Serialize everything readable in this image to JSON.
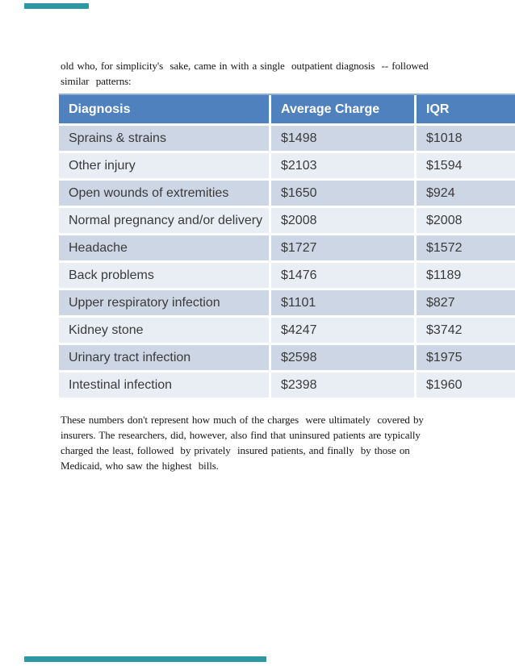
{
  "accent": {
    "color": "#2c98a4"
  },
  "intro_paragraph": {
    "lines": [
      "old who, for simplicity's  sake, came in with a single  outpatient diagnosis  -- followed",
      "similar  patterns:"
    ]
  },
  "table": {
    "header_bg": "#4e81bd",
    "row_colors": [
      "#cdd6e4",
      "#e9eef5"
    ],
    "headers": [
      "Diagnosis",
      "Average Charge",
      "IQR"
    ],
    "rows": [
      {
        "diagnosis": "Sprains & strains",
        "average_charge": "$1498",
        "iqr": "$1018"
      },
      {
        "diagnosis": "Other injury",
        "average_charge": "$2103",
        "iqr": "$1594"
      },
      {
        "diagnosis": "Open wounds of extremities",
        "average_charge": "$1650",
        "iqr": "$924"
      },
      {
        "diagnosis": "Normal pregnancy and/or delivery",
        "average_charge": "$2008",
        "iqr": "$2008"
      },
      {
        "diagnosis": "Headache",
        "average_charge": "$1727",
        "iqr": "$1572"
      },
      {
        "diagnosis": "Back problems",
        "average_charge": "$1476",
        "iqr": "$1189"
      },
      {
        "diagnosis": "Upper respiratory infection",
        "average_charge": "$1101",
        "iqr": "$827"
      },
      {
        "diagnosis": "Kidney stone",
        "average_charge": "$4247",
        "iqr": "$3742"
      },
      {
        "diagnosis": "Urinary tract infection",
        "average_charge": "$2598",
        "iqr": "$1975"
      },
      {
        "diagnosis": "Intestinal infection",
        "average_charge": "$2398",
        "iqr": "$1960"
      }
    ]
  },
  "closing_paragraph": {
    "lines": [
      "These numbers don't represent how much of the charges  were ultimately  covered by",
      "insurers. The researchers, did, however, also find that uninsured patients are typically",
      "charged the least, followed  by privately  insured patients, and finally  by those on",
      "Medicaid, who saw the highest  bills."
    ]
  }
}
